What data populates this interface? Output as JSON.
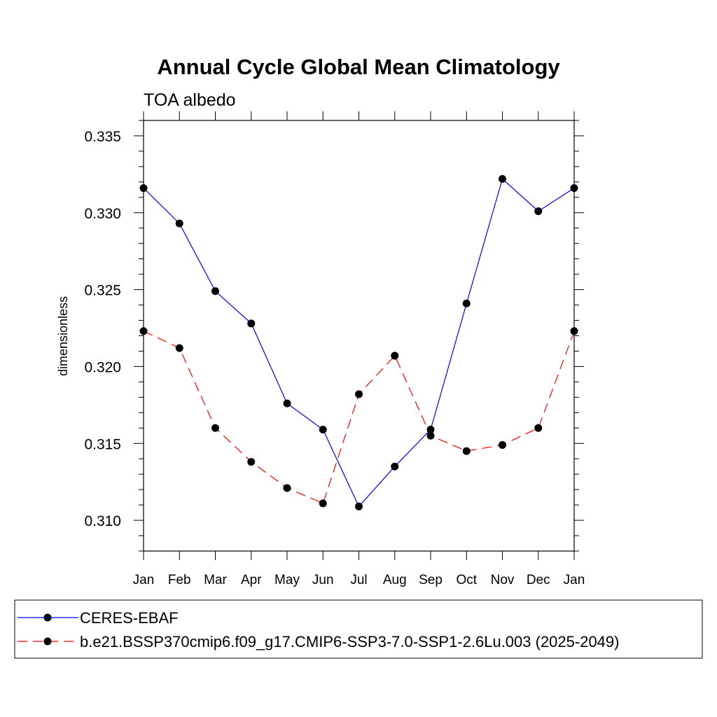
{
  "chart_data": {
    "type": "line",
    "title": "Annual Cycle Global Mean Climatology",
    "subtitle": "TOA albedo",
    "xlabel": "",
    "ylabel": "dimensionless",
    "categories": [
      "Jan",
      "Feb",
      "Mar",
      "Apr",
      "May",
      "Jun",
      "Jul",
      "Aug",
      "Sep",
      "Oct",
      "Nov",
      "Dec",
      "Jan"
    ],
    "ylim": [
      0.308,
      0.336
    ],
    "yticks": [
      "0.310",
      "0.315",
      "0.320",
      "0.325",
      "0.330",
      "0.335"
    ],
    "grid": false,
    "legend_position": "bottom",
    "series": [
      {
        "name": "CERES-EBAF",
        "color": "#0000ff",
        "line_style": "solid",
        "marker": "filled-circle",
        "values": [
          0.3316,
          0.3293,
          0.3249,
          0.3228,
          0.3176,
          0.3159,
          0.3109,
          0.3135,
          0.3159,
          0.3241,
          0.3322,
          0.3301,
          0.3316
        ]
      },
      {
        "name": "b.e21.BSSP370cmip6.f09_g17.CMIP6-SSP3-7.0-SSP1-2.6Lu.003 (2025-2049)",
        "color": "#ff0000",
        "line_style": "dashed",
        "marker": "filled-circle",
        "values": [
          0.3223,
          0.3212,
          0.316,
          0.3138,
          0.3121,
          0.3111,
          0.3182,
          0.3207,
          0.3155,
          0.3145,
          0.3149,
          0.316,
          0.3223
        ]
      }
    ]
  }
}
